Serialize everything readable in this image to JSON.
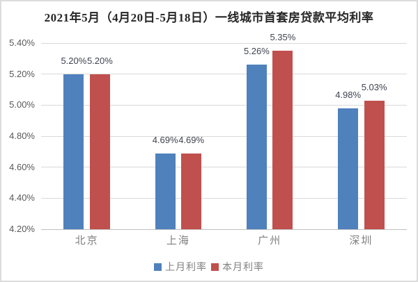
{
  "chart_data": {
    "type": "bar",
    "title": "2021年5月（4月20日-5月18日）一线城市首套房贷款平均利率",
    "categories": [
      "北京",
      "上海",
      "广州",
      "深圳"
    ],
    "series": [
      {
        "name": "上月利率",
        "color": "#4F81BD",
        "values": [
          5.2,
          4.69,
          5.26,
          4.98
        ],
        "data_labels": [
          "5.20%",
          "4.69%",
          "5.26%",
          "4.98%"
        ]
      },
      {
        "name": "本月利率",
        "color": "#C0504D",
        "values": [
          5.2,
          4.69,
          5.35,
          5.03
        ],
        "data_labels": [
          "5.20%",
          "4.69%",
          "5.35%",
          "5.03%"
        ]
      }
    ],
    "y_axis": {
      "min": 4.2,
      "max": 5.4,
      "step": 0.2,
      "tick_labels": [
        "4.20%",
        "4.40%",
        "4.60%",
        "4.80%",
        "5.00%",
        "5.20%",
        "5.40%"
      ]
    },
    "xlabel": "",
    "ylabel": "",
    "grid": true,
    "legend_position": "bottom",
    "styles": {
      "background": "#ffffff",
      "frame_border_color": "#dcdcdc",
      "grid_color": "#d9d9d9",
      "axis_line_color": "#bfbfbf",
      "tick_label_color": "#595959",
      "data_label_color": "#3f4350",
      "category_label_color": "#808080",
      "legend_text_color": "#808080",
      "title_color": "#262626"
    }
  }
}
